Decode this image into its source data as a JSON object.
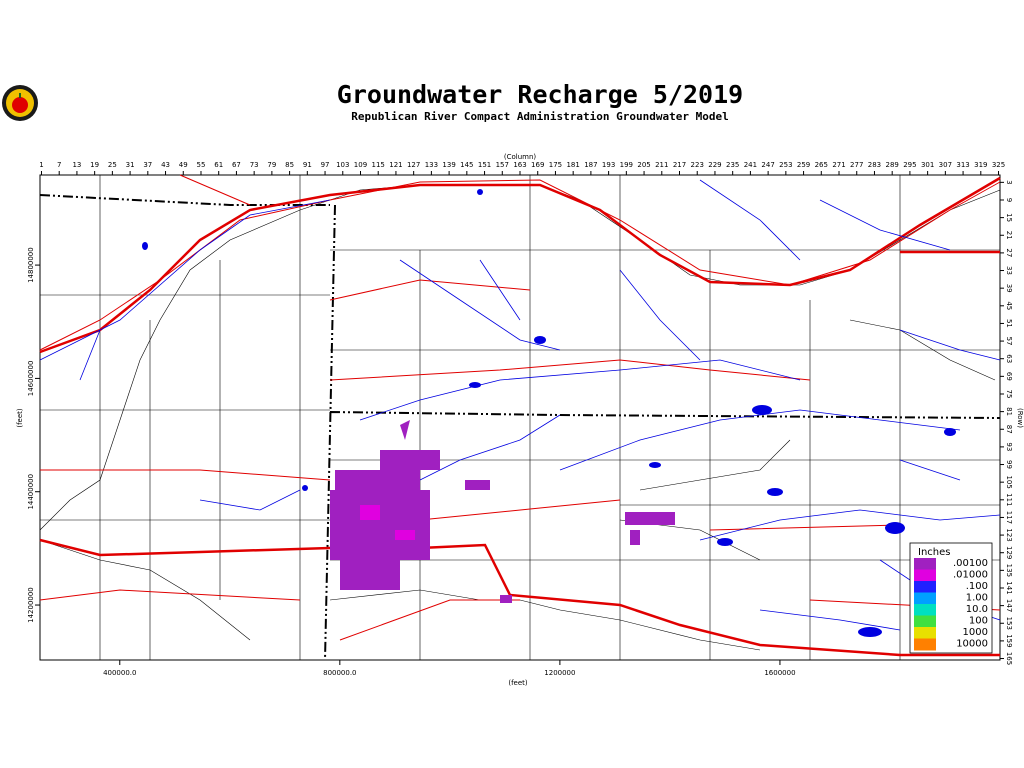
{
  "title": "Groundwater Recharge 5/2019",
  "subtitle": "Republican River Compact Administration Groundwater Model",
  "column_axis": {
    "label": "(Column)",
    "lim": [
      0.5,
      325.5
    ],
    "ticks": [
      1,
      7,
      13,
      19,
      25,
      31,
      37,
      43,
      49,
      55,
      61,
      67,
      73,
      79,
      85,
      91,
      97,
      103,
      109,
      115,
      121,
      127,
      133,
      139,
      145,
      151,
      157,
      163,
      169,
      175,
      181,
      187,
      193,
      199,
      205,
      211,
      217,
      223,
      229,
      235,
      241,
      247,
      253,
      259,
      265,
      271,
      277,
      283,
      289,
      295,
      301,
      307,
      313,
      319,
      325
    ]
  },
  "row_axis": {
    "label": "(Row)",
    "lim": [
      0.5,
      165.5
    ],
    "ticks": [
      3,
      9,
      15,
      21,
      27,
      33,
      39,
      45,
      51,
      57,
      63,
      69,
      75,
      81,
      87,
      93,
      99,
      105,
      111,
      117,
      123,
      129,
      135,
      141,
      147,
      153,
      159,
      165
    ]
  },
  "x_feet_axis": {
    "label": "(feet)",
    "lim": [
      255000,
      2000000
    ],
    "ticks": [
      {
        "value": 400000,
        "label": "400000.0"
      },
      {
        "value": 800000,
        "label": "800000.0"
      },
      1200000,
      1600000
    ]
  },
  "y_feet_axis": {
    "label": "(feet)",
    "lim": [
      14103000,
      14959000
    ],
    "ticks": [
      14800000,
      14600000,
      14400000,
      14200000
    ]
  },
  "legend": {
    "title": "Inches",
    "items": [
      {
        "label": ".00100",
        "color": "#a020c0"
      },
      {
        "label": ".01000",
        "color": "#e000e0"
      },
      {
        "label": ".100",
        "color": "#2020ff"
      },
      {
        "label": "1.00",
        "color": "#00a0ff"
      },
      {
        "label": "10.0",
        "color": "#00e0c0"
      },
      {
        "label": "100",
        "color": "#40e040"
      },
      {
        "label": "1000",
        "color": "#e8e000"
      },
      {
        "label": "10000",
        "color": "#ff8000"
      }
    ]
  }
}
